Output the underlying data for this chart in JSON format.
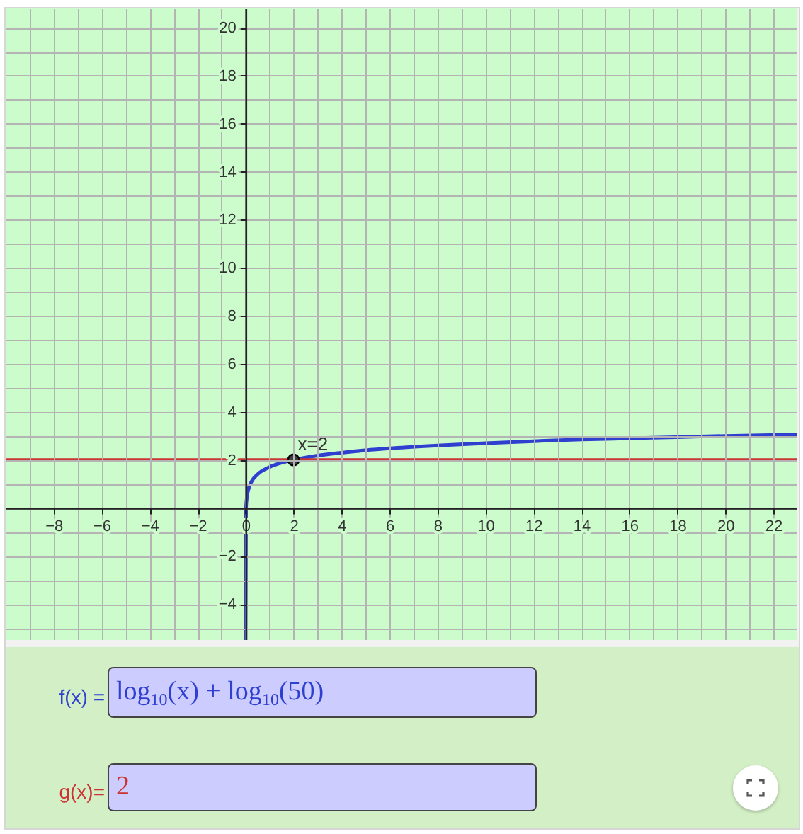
{
  "chart_data": {
    "type": "line",
    "series": [
      {
        "name": "f(x) =",
        "color": "#2f3fd0",
        "x": [
          0,
          0.02,
          0.05,
          0.1,
          0.25,
          0.5,
          1,
          1.5,
          2,
          3,
          4,
          5,
          6,
          8,
          10,
          12,
          14,
          16,
          18,
          20,
          23
        ],
        "values": [
          -5.5,
          0,
          0.4,
          0.7,
          1.1,
          1.4,
          1.7,
          1.88,
          2,
          2.18,
          2.3,
          2.4,
          2.48,
          2.6,
          2.7,
          2.78,
          2.85,
          2.9,
          2.95,
          3,
          3.06
        ]
      },
      {
        "name": "g(x)=",
        "color": "#cc3333",
        "x": [
          -10,
          23
        ],
        "values": [
          2,
          2
        ]
      },
      {
        "type": "scatter",
        "color": "#404040",
        "x": [
          2
        ],
        "values": [
          2
        ]
      }
    ],
    "xlim": [
      -10,
      23
    ],
    "ylim": [
      -5.5,
      20.8
    ],
    "xticks": [
      {
        "value": -9,
        "label": null
      },
      -8,
      {
        "value": -7,
        "label": null
      },
      -6,
      {
        "value": -5,
        "label": null
      },
      -4,
      {
        "value": -3,
        "label": null
      },
      -2,
      {
        "value": -1,
        "label": null
      },
      0,
      {
        "value": 1,
        "label": null
      },
      2,
      {
        "value": 3,
        "label": null
      },
      4,
      {
        "value": 5,
        "label": null
      },
      6,
      {
        "value": 7,
        "label": null
      },
      8,
      {
        "value": 9,
        "label": null
      },
      10,
      {
        "value": 11,
        "label": null
      },
      12,
      {
        "value": 13,
        "label": null
      },
      14,
      {
        "value": 15,
        "label": null
      },
      16,
      {
        "value": 17,
        "label": null
      },
      18,
      {
        "value": 19,
        "label": null
      },
      20,
      {
        "value": 21,
        "label": null
      },
      22
    ],
    "yticks": [
      {
        "value": -5,
        "label": null
      },
      -4,
      {
        "value": -3,
        "label": null
      },
      -2,
      {
        "value": -1,
        "label": null
      },
      {
        "value": 0,
        "label": null
      },
      {
        "value": 1,
        "label": null
      },
      2,
      {
        "value": 3,
        "label": null
      },
      4,
      {
        "value": 5,
        "label": null
      },
      6,
      {
        "value": 7,
        "label": null
      },
      8,
      {
        "value": 9,
        "label": null
      },
      10,
      {
        "value": 11,
        "label": null
      },
      12,
      {
        "value": 13,
        "label": null
      },
      14,
      {
        "value": 15,
        "label": null
      },
      16,
      {
        "value": 17,
        "label": null
      },
      18,
      {
        "value": 19,
        "label": null
      },
      20
    ],
    "grid": true,
    "annotations": [
      {
        "text": "x=2",
        "x": 2,
        "y": 2
      },
      "log$_{10}$(x) + log$_{10}$(50)",
      "2"
    ]
  }
}
